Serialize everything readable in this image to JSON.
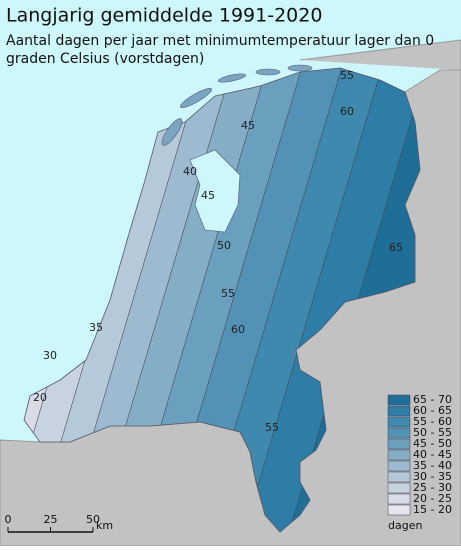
{
  "title": "Langjarig gemiddelde 1991-2020",
  "subtitle_lines": [
    "Aantal dagen per jaar met minimumtemperatuur lager dan 0",
    "graden Celsius (vorstdagen)"
  ],
  "legend": {
    "title": "dagen",
    "items": [
      {
        "label": "65 - 70",
        "color": "#1e6e98"
      },
      {
        "label": "60 - 65",
        "color": "#2e7da6"
      },
      {
        "label": "55 - 60",
        "color": "#3f88ae"
      },
      {
        "label": "50 - 55",
        "color": "#5293b5"
      },
      {
        "label": "45 - 50",
        "color": "#6a9fbe"
      },
      {
        "label": "40 - 45",
        "color": "#84adc6"
      },
      {
        "label": "35 - 40",
        "color": "#9dbbd0"
      },
      {
        "label": "30 - 35",
        "color": "#b5c9d9"
      },
      {
        "label": "25 - 30",
        "color": "#c8d3e0"
      },
      {
        "label": "20 - 25",
        "color": "#d9dce6"
      },
      {
        "label": "15 - 20",
        "color": "#e6e4ec"
      }
    ]
  },
  "contour_labels": [
    "20",
    "30",
    "35",
    "40",
    "45",
    "45",
    "50",
    "55",
    "60",
    "65",
    "55",
    "60",
    "55"
  ],
  "scale": {
    "ticks": [
      0,
      25,
      50
    ],
    "unit": "km"
  }
}
